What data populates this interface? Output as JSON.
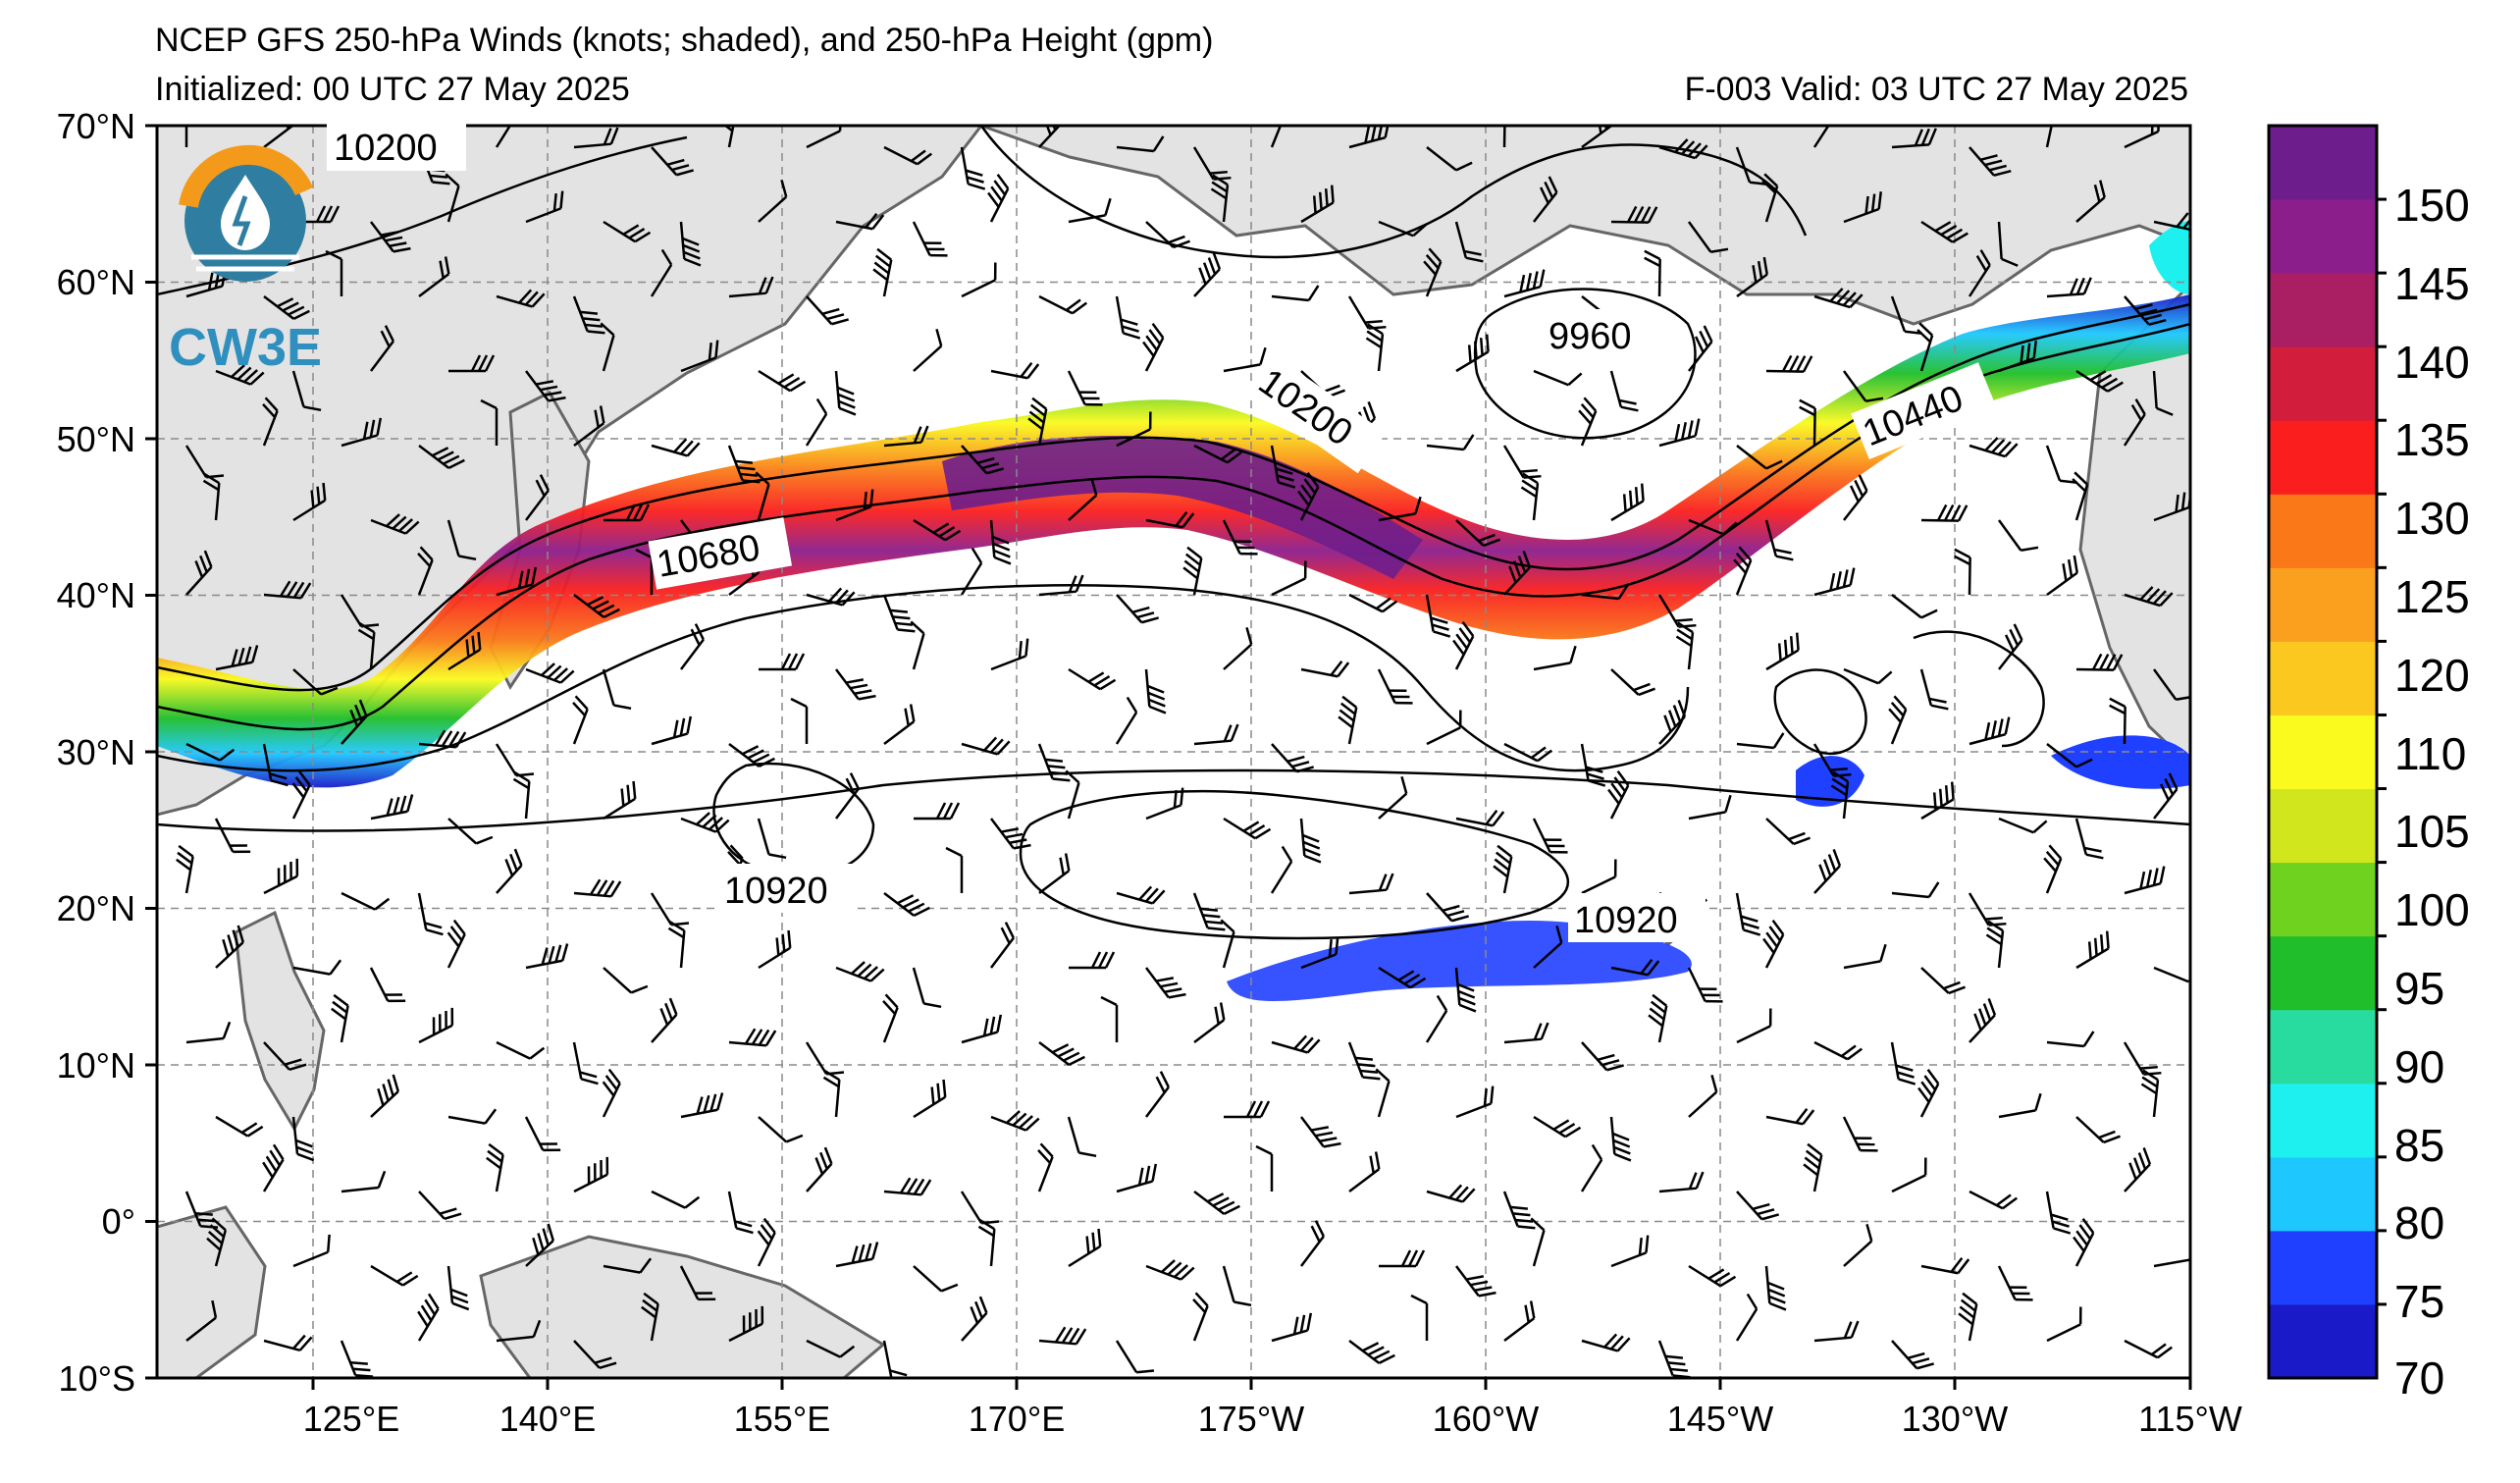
{
  "header": {
    "title": "NCEP GFS 250-hPa Winds (knots; shaded), and 250-hPa Height (gpm)",
    "init": "Initialized: 00 UTC 27 May 2025",
    "valid": "F-003  Valid: 03 UTC 27 May 2025"
  },
  "logo": {
    "text": "CW3E"
  },
  "axes": {
    "lat_labels": [
      "70°N",
      "60°N",
      "50°N",
      "40°N",
      "30°N",
      "20°N",
      "10°N",
      "0°",
      "10°S"
    ],
    "lon_labels": [
      "125°E",
      "140°E",
      "155°E",
      "170°E",
      "175°W",
      "160°W",
      "145°W",
      "130°W",
      "115°W"
    ]
  },
  "contour_labels": [
    "10200",
    "9960",
    "10200",
    "10440",
    "10680",
    "10920",
    "10920"
  ],
  "colorbar": {
    "ticks": [
      "150",
      "145",
      "140",
      "135",
      "130",
      "125",
      "120",
      "110",
      "105",
      "100",
      "95",
      "90",
      "85",
      "80",
      "75",
      "70"
    ],
    "colors": [
      "#1a1ac8",
      "#2040ff",
      "#1ec8ff",
      "#1ef0f0",
      "#28dca0",
      "#1fbe2a",
      "#6ed21e",
      "#d2e61e",
      "#fafa1e",
      "#fac81e",
      "#faa01e",
      "#fa7818",
      "#fa1e1e",
      "#d21e3c",
      "#aa1e64",
      "#8c1e8c",
      "#6e1e8c"
    ]
  },
  "colors": {
    "land": "#e3e3e3",
    "coast": "#666666",
    "grid": "#8a8a8a"
  }
}
